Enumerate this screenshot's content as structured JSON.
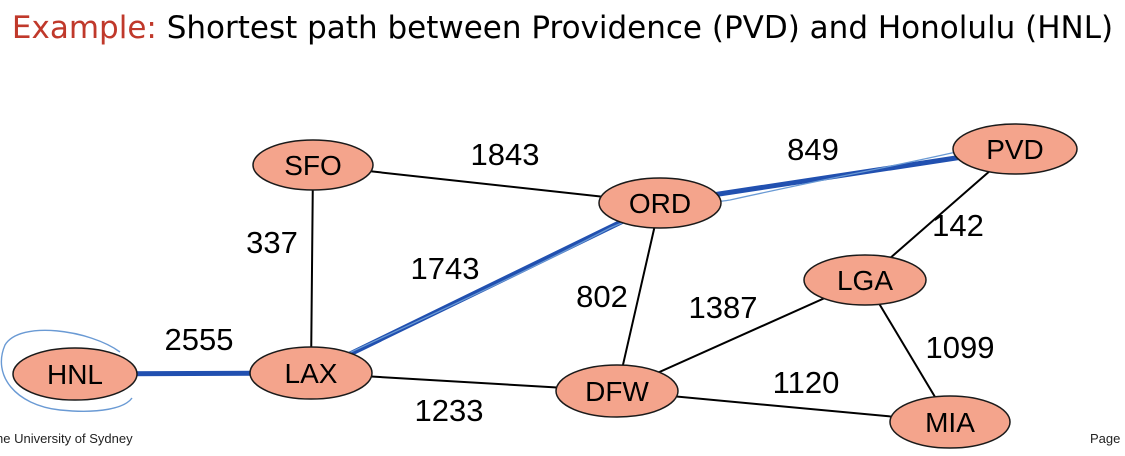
{
  "title": {
    "prefix": "Example:",
    "text": " Shortest path between Providence (PVD) and Honolulu (HNL)"
  },
  "footer": {
    "left": "he University of Sydney",
    "right": "Page"
  },
  "colors": {
    "title_prefix": "#c0392b",
    "node_fill": "#f4a48c",
    "node_stroke": "#1a1a1a",
    "edge": "#000000",
    "path_highlight": "#2150b0",
    "annotation": "#6a9ad4"
  },
  "graph": {
    "nodes": [
      {
        "id": "SFO",
        "label": "SFO"
      },
      {
        "id": "ORD",
        "label": "ORD"
      },
      {
        "id": "PVD",
        "label": "PVD"
      },
      {
        "id": "LGA",
        "label": "LGA"
      },
      {
        "id": "HNL",
        "label": "HNL"
      },
      {
        "id": "LAX",
        "label": "LAX"
      },
      {
        "id": "DFW",
        "label": "DFW"
      },
      {
        "id": "MIA",
        "label": "MIA"
      }
    ],
    "edges": [
      {
        "from": "SFO",
        "to": "ORD",
        "weight": "1843",
        "highlighted": false
      },
      {
        "from": "ORD",
        "to": "PVD",
        "weight": "849",
        "highlighted": true
      },
      {
        "from": "SFO",
        "to": "LAX",
        "weight": "337",
        "highlighted": false
      },
      {
        "from": "LAX",
        "to": "ORD",
        "weight": "1743",
        "highlighted": true
      },
      {
        "from": "ORD",
        "to": "DFW",
        "weight": "802",
        "highlighted": false
      },
      {
        "from": "PVD",
        "to": "LGA",
        "weight": "142",
        "highlighted": false
      },
      {
        "from": "LGA",
        "to": "DFW",
        "weight": "1387",
        "highlighted": false
      },
      {
        "from": "HNL",
        "to": "LAX",
        "weight": "2555",
        "highlighted": true
      },
      {
        "from": "LGA",
        "to": "MIA",
        "weight": "1099",
        "highlighted": false
      },
      {
        "from": "LAX",
        "to": "DFW",
        "weight": "1233",
        "highlighted": false
      },
      {
        "from": "DFW",
        "to": "MIA",
        "weight": "1120",
        "highlighted": false
      }
    ]
  }
}
